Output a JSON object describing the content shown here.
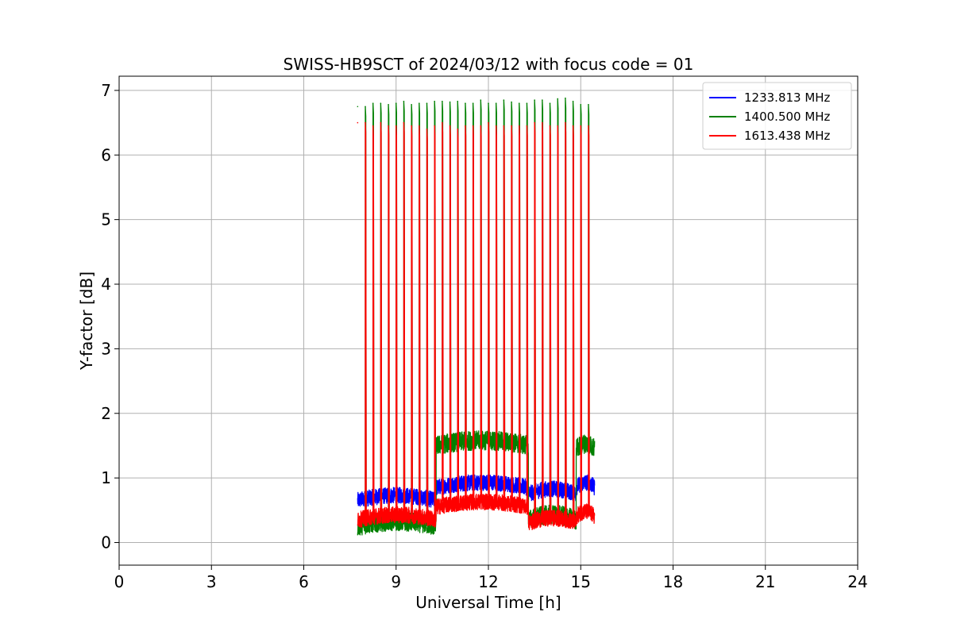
{
  "chart_data": {
    "type": "line",
    "title": "SWISS-HB9SCT of 2024/03/12 with focus code = 01",
    "xlabel": "Universal Time [h]",
    "ylabel": "Y-factor [dB]",
    "xlim": [
      0,
      24
    ],
    "ylim": [
      -0.35,
      7.22
    ],
    "xticks": [
      0,
      3,
      6,
      9,
      12,
      15,
      18,
      21,
      24
    ],
    "yticks": [
      0,
      1,
      2,
      3,
      4,
      5,
      6,
      7
    ],
    "grid": true,
    "legend_position": "top-right",
    "segments": [
      [
        7.75,
        10.3
      ],
      [
        10.3,
        13.3
      ],
      [
        13.3,
        14.85
      ],
      [
        14.85,
        15.45
      ]
    ],
    "series": [
      {
        "name": "1233.813 MHz",
        "color": "#0000ff",
        "baseline": [
          0.65,
          0.85,
          0.75,
          0.85
        ],
        "noise": 0.25,
        "peaks": []
      },
      {
        "name": "1400.500 MHz",
        "color": "#008000",
        "baseline": [
          0.25,
          1.5,
          0.35,
          1.45
        ],
        "noise": 0.3,
        "peaks": [
          {
            "x": 7.75,
            "y": 6.75
          },
          {
            "x": 8.0,
            "y": 6.75
          },
          {
            "x": 8.25,
            "y": 6.8
          },
          {
            "x": 8.5,
            "y": 6.8
          },
          {
            "x": 8.75,
            "y": 6.78
          },
          {
            "x": 9.0,
            "y": 6.8
          },
          {
            "x": 9.25,
            "y": 6.83
          },
          {
            "x": 9.5,
            "y": 6.78
          },
          {
            "x": 9.75,
            "y": 6.8
          },
          {
            "x": 10.0,
            "y": 6.8
          },
          {
            "x": 10.25,
            "y": 6.83
          },
          {
            "x": 10.5,
            "y": 6.83
          },
          {
            "x": 10.75,
            "y": 6.82
          },
          {
            "x": 11.0,
            "y": 6.83
          },
          {
            "x": 11.25,
            "y": 6.8
          },
          {
            "x": 11.5,
            "y": 6.8
          },
          {
            "x": 11.75,
            "y": 6.85
          },
          {
            "x": 12.0,
            "y": 6.8
          },
          {
            "x": 12.25,
            "y": 6.8
          },
          {
            "x": 12.5,
            "y": 6.85
          },
          {
            "x": 12.75,
            "y": 6.82
          },
          {
            "x": 13.0,
            "y": 6.8
          },
          {
            "x": 13.25,
            "y": 6.8
          },
          {
            "x": 13.5,
            "y": 6.85
          },
          {
            "x": 13.75,
            "y": 6.85
          },
          {
            "x": 14.0,
            "y": 6.8
          },
          {
            "x": 14.25,
            "y": 6.87
          },
          {
            "x": 14.5,
            "y": 6.88
          },
          {
            "x": 14.75,
            "y": 6.83
          },
          {
            "x": 15.0,
            "y": 6.78
          },
          {
            "x": 15.25,
            "y": 6.78
          }
        ]
      },
      {
        "name": "1613.438 MHz",
        "color": "#ff0000",
        "baseline": [
          0.35,
          0.55,
          0.3,
          0.4
        ],
        "noise": 0.25,
        "peaks": [
          {
            "x": 7.75,
            "y": 6.5
          },
          {
            "x": 8.0,
            "y": 6.5
          },
          {
            "x": 8.25,
            "y": 6.45
          },
          {
            "x": 8.5,
            "y": 6.5
          },
          {
            "x": 8.75,
            "y": 6.45
          },
          {
            "x": 9.0,
            "y": 6.45
          },
          {
            "x": 9.25,
            "y": 6.5
          },
          {
            "x": 9.5,
            "y": 6.45
          },
          {
            "x": 9.75,
            "y": 6.45
          },
          {
            "x": 10.0,
            "y": 6.4
          },
          {
            "x": 10.25,
            "y": 6.45
          },
          {
            "x": 10.5,
            "y": 6.5
          },
          {
            "x": 10.75,
            "y": 6.45
          },
          {
            "x": 11.0,
            "y": 6.4
          },
          {
            "x": 11.25,
            "y": 6.45
          },
          {
            "x": 11.5,
            "y": 6.45
          },
          {
            "x": 11.75,
            "y": 6.45
          },
          {
            "x": 12.0,
            "y": 6.5
          },
          {
            "x": 12.25,
            "y": 6.45
          },
          {
            "x": 12.5,
            "y": 6.45
          },
          {
            "x": 12.75,
            "y": 6.45
          },
          {
            "x": 13.0,
            "y": 6.45
          },
          {
            "x": 13.25,
            "y": 6.45
          },
          {
            "x": 13.5,
            "y": 6.5
          },
          {
            "x": 13.75,
            "y": 6.5
          },
          {
            "x": 14.0,
            "y": 6.45
          },
          {
            "x": 14.25,
            "y": 6.45
          },
          {
            "x": 14.5,
            "y": 6.5
          },
          {
            "x": 14.75,
            "y": 6.45
          },
          {
            "x": 15.0,
            "y": 6.45
          },
          {
            "x": 15.25,
            "y": 6.45
          }
        ]
      }
    ]
  }
}
